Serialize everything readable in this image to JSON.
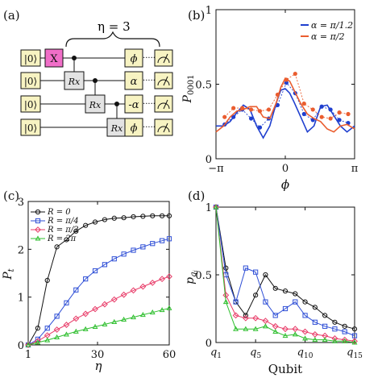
{
  "panel_labels": [
    "(a)",
    "(b)",
    "(c)",
    "(d)"
  ],
  "circuit": {
    "eta_label": "η = 3",
    "input_label": "|0⟩",
    "gates": {
      "x": "X",
      "rx": "Rx",
      "phi": "ϕ",
      "alpha": "α",
      "neg_alpha": "-α",
      "dots": "·····"
    },
    "colors": {
      "input": "#f7f3c2",
      "x_gate": "#f06ec8",
      "rx_gate": "#e3e3e3",
      "phase_gate": "#f7f3c2"
    }
  },
  "chart_data": [
    {
      "panel": "b",
      "type": "line",
      "xlabel": "ϕ",
      "ylabel": "P0001",
      "xlim": [
        -3.1416,
        3.1416
      ],
      "ylim": [
        0,
        1
      ],
      "xticks": [
        {
          "v": -3.1416,
          "t": "−π"
        },
        {
          "v": 0,
          "t": "0"
        },
        {
          "v": 3.1416,
          "t": "π"
        }
      ],
      "yticks": [
        {
          "v": 0,
          "t": "0"
        },
        {
          "v": 0.5,
          "t": "0.5"
        },
        {
          "v": 1,
          "t": "1"
        }
      ],
      "legend": [
        "α = π/1.2",
        "α = π/2"
      ],
      "legend_position": "top-right",
      "series": [
        {
          "name": "α = π/1.2",
          "color": "#1f3fcf",
          "line_x": [
            -3.14,
            -2.8,
            -2.5,
            -2.2,
            -1.9,
            -1.6,
            -1.3,
            -1.0,
            -0.7,
            -0.4,
            -0.2,
            0,
            0.2,
            0.4,
            0.7,
            1.0,
            1.3,
            1.6,
            1.9,
            2.2,
            2.5,
            2.8,
            3.14
          ],
          "line_y": [
            0.22,
            0.22,
            0.25,
            0.31,
            0.36,
            0.33,
            0.22,
            0.14,
            0.22,
            0.38,
            0.46,
            0.47,
            0.44,
            0.38,
            0.28,
            0.18,
            0.22,
            0.35,
            0.36,
            0.29,
            0.22,
            0.18,
            0.22
          ],
          "points_x": [
            -2.75,
            -2.35,
            -1.95,
            -1.55,
            -1.15,
            -0.75,
            -0.35,
            0.05,
            0.45,
            0.85,
            1.25,
            1.65,
            2.05,
            2.45,
            2.85
          ],
          "points_y": [
            0.23,
            0.28,
            0.33,
            0.27,
            0.21,
            0.27,
            0.36,
            0.51,
            0.44,
            0.3,
            0.26,
            0.35,
            0.33,
            0.26,
            0.24
          ]
        },
        {
          "name": "α = π/2",
          "color": "#ea5d2f",
          "line_x": [
            -3.14,
            -2.8,
            -2.5,
            -2.2,
            -1.9,
            -1.6,
            -1.3,
            -1.0,
            -0.7,
            -0.4,
            -0.2,
            0,
            0.2,
            0.4,
            0.7,
            1.0,
            1.3,
            1.6,
            1.9,
            2.2,
            2.5,
            2.8,
            3.14
          ],
          "line_y": [
            0.18,
            0.22,
            0.28,
            0.32,
            0.33,
            0.35,
            0.35,
            0.28,
            0.27,
            0.38,
            0.48,
            0.54,
            0.52,
            0.46,
            0.37,
            0.3,
            0.27,
            0.25,
            0.2,
            0.18,
            0.22,
            0.23,
            0.2
          ],
          "points_x": [
            -2.75,
            -2.35,
            -1.95,
            -1.55,
            -1.15,
            -0.75,
            -0.35,
            0.05,
            0.45,
            0.85,
            1.25,
            1.65,
            2.05,
            2.45,
            2.85
          ],
          "points_y": [
            0.28,
            0.34,
            0.34,
            0.33,
            0.32,
            0.33,
            0.43,
            0.53,
            0.57,
            0.37,
            0.33,
            0.28,
            0.27,
            0.31,
            0.3
          ]
        }
      ]
    },
    {
      "panel": "c",
      "type": "line",
      "xlabel": "η",
      "ylabel": "Pt",
      "xlim": [
        1,
        60
      ],
      "ylim": [
        0,
        3
      ],
      "xticks": [
        {
          "v": 1,
          "t": "1"
        },
        {
          "v": 30,
          "t": "30"
        },
        {
          "v": 60,
          "t": "60"
        }
      ],
      "yticks": [
        {
          "v": 0,
          "t": "0"
        },
        {
          "v": 1,
          "t": "1"
        },
        {
          "v": 2,
          "t": "2"
        },
        {
          "v": 3,
          "t": "3"
        }
      ],
      "x": [
        1,
        5,
        9,
        13,
        17,
        21,
        25,
        29,
        33,
        37,
        41,
        45,
        49,
        53,
        57,
        60
      ],
      "legend": [
        "R = 0",
        "R = π/4",
        "R = π/2",
        "R = 2π"
      ],
      "legend_position": "top-left",
      "series": [
        {
          "name": "R = 0",
          "color": "#111111",
          "marker": "circle",
          "values": [
            0.0,
            0.35,
            1.35,
            2.05,
            2.2,
            2.38,
            2.5,
            2.57,
            2.62,
            2.65,
            2.66,
            2.68,
            2.69,
            2.7,
            2.7,
            2.7
          ]
        },
        {
          "name": "R = π/4",
          "color": "#2f4fd6",
          "marker": "square",
          "values": [
            0.0,
            0.12,
            0.35,
            0.6,
            0.88,
            1.15,
            1.38,
            1.55,
            1.68,
            1.8,
            1.9,
            1.98,
            2.05,
            2.12,
            2.18,
            2.22
          ]
        },
        {
          "name": "R = π/2",
          "color": "#e83a67",
          "marker": "diamond",
          "values": [
            0.0,
            0.08,
            0.2,
            0.32,
            0.42,
            0.55,
            0.65,
            0.75,
            0.85,
            0.95,
            1.05,
            1.14,
            1.22,
            1.3,
            1.38,
            1.43
          ]
        },
        {
          "name": "R = 2π",
          "color": "#2fbf2f",
          "marker": "triangle",
          "values": [
            0.0,
            0.05,
            0.1,
            0.16,
            0.22,
            0.28,
            0.33,
            0.38,
            0.43,
            0.48,
            0.53,
            0.58,
            0.63,
            0.68,
            0.73,
            0.77
          ]
        }
      ]
    },
    {
      "panel": "d",
      "type": "line",
      "xlabel": "Qubit",
      "ylabel": "pqi",
      "xlim": [
        1,
        15
      ],
      "ylim": [
        0,
        1
      ],
      "xticks": [
        {
          "v": 1,
          "t": "q",
          "s": "1"
        },
        {
          "v": 5,
          "t": "q",
          "s": "5"
        },
        {
          "v": 10,
          "t": "q",
          "s": "10"
        },
        {
          "v": 15,
          "t": "q",
          "s": "15"
        }
      ],
      "yticks": [
        {
          "v": 0,
          "t": "0"
        },
        {
          "v": 0.5,
          "t": "0.5"
        },
        {
          "v": 1,
          "t": "1"
        }
      ],
      "x": [
        1,
        2,
        3,
        4,
        5,
        6,
        7,
        8,
        9,
        10,
        11,
        12,
        13,
        14,
        15
      ],
      "series": [
        {
          "color": "#111111",
          "marker": "circle",
          "values": [
            1.0,
            0.55,
            0.3,
            0.2,
            0.35,
            0.5,
            0.4,
            0.38,
            0.36,
            0.3,
            0.26,
            0.2,
            0.15,
            0.12,
            0.1
          ]
        },
        {
          "color": "#2f4fd6",
          "marker": "square",
          "values": [
            1.0,
            0.5,
            0.3,
            0.55,
            0.52,
            0.3,
            0.2,
            0.25,
            0.3,
            0.2,
            0.15,
            0.12,
            0.1,
            0.08,
            0.05
          ]
        },
        {
          "color": "#e83a67",
          "marker": "diamond",
          "values": [
            1.0,
            0.35,
            0.2,
            0.18,
            0.18,
            0.16,
            0.12,
            0.1,
            0.1,
            0.08,
            0.06,
            0.05,
            0.03,
            0.02,
            0.01
          ]
        },
        {
          "color": "#2fbf2f",
          "marker": "triangle",
          "values": [
            1.0,
            0.3,
            0.1,
            0.1,
            0.1,
            0.12,
            0.08,
            0.05,
            0.06,
            0.03,
            0.02,
            0.02,
            0.01,
            0.01,
            0.0
          ]
        }
      ]
    }
  ]
}
